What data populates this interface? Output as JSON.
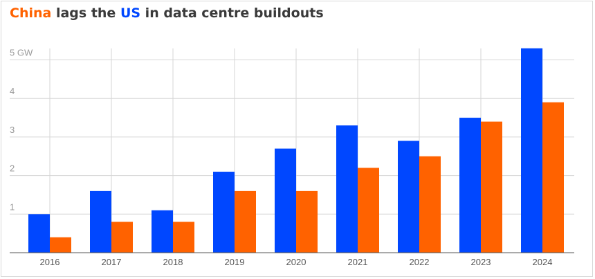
{
  "title": {
    "china": "China",
    "part1": " lags the ",
    "us": "US",
    "part2": " in data centre buildouts"
  },
  "chart_data": {
    "type": "bar",
    "title": "China lags the US in data centre buildouts",
    "xlabel": "",
    "ylabel": "GW",
    "ylim": [
      0,
      5.3
    ],
    "yticks": [
      {
        "v": 1,
        "label": "1"
      },
      {
        "v": 2,
        "label": "2"
      },
      {
        "v": 3,
        "label": "3"
      },
      {
        "v": 4,
        "label": "4"
      },
      {
        "v": 5,
        "label": "5 GW"
      }
    ],
    "grid": true,
    "categories": [
      "2016",
      "2017",
      "2018",
      "2019",
      "2020",
      "2021",
      "2022",
      "2023",
      "2024"
    ],
    "series": [
      {
        "name": "US",
        "color": "#0047ff",
        "values": [
          1.0,
          1.6,
          1.1,
          2.1,
          2.7,
          3.3,
          2.9,
          3.5,
          5.3
        ]
      },
      {
        "name": "China",
        "color": "#ff6200",
        "values": [
          0.4,
          0.8,
          0.8,
          1.6,
          1.6,
          2.2,
          2.5,
          3.4,
          3.9
        ]
      }
    ]
  }
}
